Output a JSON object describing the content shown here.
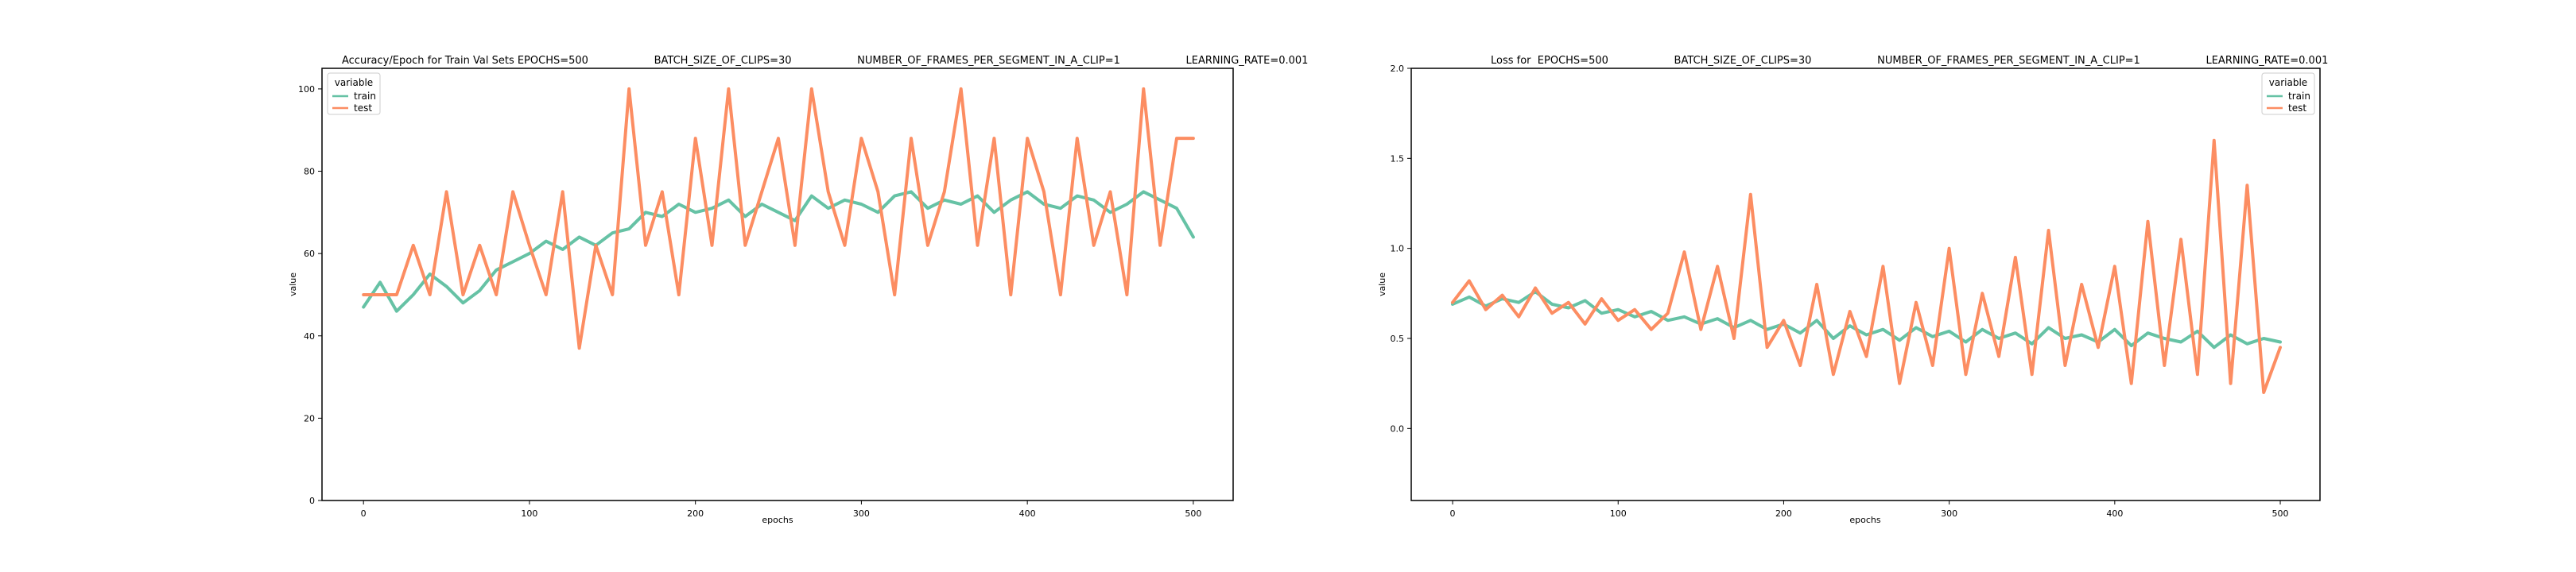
{
  "chart_data": [
    {
      "type": "line",
      "title": "Accuracy/Epoch for Train Val Sets EPOCHS=500                    BATCH_SIZE_OF_CLIPS=30                    NUMBER_OF_FRAMES_PER_SEGMENT_IN_A_CLIP=1                    LEARNING_RATE=0.001",
      "xlabel": "epochs",
      "ylabel": "value",
      "xlim": [
        -25,
        524
      ],
      "ylim": [
        0,
        105
      ],
      "xticks": [
        0,
        100,
        200,
        300,
        400,
        500
      ],
      "yticks": [
        0,
        20,
        40,
        60,
        80,
        100
      ],
      "grid": false,
      "legend": {
        "title": "variable",
        "placement": "upper-left"
      },
      "series": [
        {
          "name": "train",
          "color": "#66c2a5",
          "x": [
            0,
            10,
            20,
            30,
            40,
            50,
            60,
            70,
            80,
            90,
            100,
            110,
            120,
            130,
            140,
            150,
            160,
            170,
            180,
            190,
            200,
            210,
            220,
            230,
            240,
            250,
            260,
            270,
            280,
            290,
            300,
            310,
            320,
            330,
            340,
            350,
            360,
            370,
            380,
            390,
            400,
            410,
            420,
            430,
            440,
            450,
            460,
            470,
            480,
            490,
            500
          ],
          "y": [
            47,
            53,
            46,
            50,
            55,
            52,
            48,
            51,
            56,
            58,
            60,
            63,
            61,
            64,
            62,
            65,
            66,
            70,
            69,
            72,
            70,
            71,
            73,
            69,
            72,
            70,
            68,
            74,
            71,
            73,
            72,
            70,
            74,
            75,
            71,
            73,
            72,
            74,
            70,
            73,
            75,
            72,
            71,
            74,
            73,
            70,
            72,
            75,
            73,
            71,
            64
          ]
        },
        {
          "name": "test",
          "color": "#fc8d62",
          "x": [
            0,
            10,
            20,
            30,
            40,
            50,
            60,
            70,
            80,
            90,
            100,
            110,
            120,
            130,
            140,
            150,
            160,
            170,
            180,
            190,
            200,
            210,
            220,
            230,
            240,
            250,
            260,
            270,
            280,
            290,
            300,
            310,
            320,
            330,
            340,
            350,
            360,
            370,
            380,
            390,
            400,
            410,
            420,
            430,
            440,
            450,
            460,
            470,
            480,
            490,
            500
          ],
          "y": [
            50,
            50,
            50,
            62,
            50,
            75,
            50,
            62,
            50,
            75,
            62,
            50,
            75,
            37,
            62,
            50,
            100,
            62,
            75,
            50,
            88,
            62,
            100,
            62,
            75,
            88,
            62,
            100,
            75,
            62,
            88,
            75,
            50,
            88,
            62,
            75,
            100,
            62,
            88,
            50,
            88,
            75,
            50,
            88,
            62,
            75,
            50,
            100,
            62,
            88,
            88
          ]
        }
      ]
    },
    {
      "type": "line",
      "title": "Loss for  EPOCHS=500                    BATCH_SIZE_OF_CLIPS=30                    NUMBER_OF_FRAMES_PER_SEGMENT_IN_A_CLIP=1                    LEARNING_RATE=0.001",
      "xlabel": "epochs",
      "ylabel": "value",
      "xlim": [
        -25,
        524
      ],
      "ylim": [
        -0.4,
        2.0
      ],
      "xticks": [
        0,
        100,
        200,
        300,
        400,
        500
      ],
      "yticks": [
        0.0,
        0.5,
        1.0,
        1.5,
        2.0
      ],
      "grid": false,
      "legend": {
        "title": "variable",
        "placement": "upper-right"
      },
      "series": [
        {
          "name": "train",
          "color": "#66c2a5",
          "x": [
            0,
            10,
            20,
            30,
            40,
            50,
            60,
            70,
            80,
            90,
            100,
            110,
            120,
            130,
            140,
            150,
            160,
            170,
            180,
            190,
            200,
            210,
            220,
            230,
            240,
            250,
            260,
            270,
            280,
            290,
            300,
            310,
            320,
            330,
            340,
            350,
            360,
            370,
            380,
            390,
            400,
            410,
            420,
            430,
            440,
            450,
            460,
            470,
            480,
            490,
            500
          ],
          "y": [
            0.69,
            0.73,
            0.68,
            0.72,
            0.7,
            0.76,
            0.69,
            0.67,
            0.71,
            0.64,
            0.66,
            0.62,
            0.65,
            0.6,
            0.62,
            0.58,
            0.61,
            0.56,
            0.6,
            0.55,
            0.58,
            0.53,
            0.6,
            0.5,
            0.57,
            0.52,
            0.55,
            0.49,
            0.56,
            0.51,
            0.54,
            0.48,
            0.55,
            0.5,
            0.53,
            0.47,
            0.56,
            0.5,
            0.52,
            0.48,
            0.55,
            0.46,
            0.53,
            0.5,
            0.48,
            0.54,
            0.45,
            0.52,
            0.47,
            0.5,
            0.48
          ]
        },
        {
          "name": "test",
          "color": "#fc8d62",
          "x": [
            0,
            10,
            20,
            30,
            40,
            50,
            60,
            70,
            80,
            90,
            100,
            110,
            120,
            130,
            140,
            150,
            160,
            170,
            180,
            190,
            200,
            210,
            220,
            230,
            240,
            250,
            260,
            270,
            280,
            290,
            300,
            310,
            320,
            330,
            340,
            350,
            360,
            370,
            380,
            390,
            400,
            410,
            420,
            430,
            440,
            450,
            460,
            470,
            480,
            490,
            500
          ],
          "y": [
            0.7,
            0.82,
            0.66,
            0.74,
            0.62,
            0.78,
            0.64,
            0.7,
            0.58,
            0.72,
            0.6,
            0.66,
            0.55,
            0.64,
            0.98,
            0.55,
            0.9,
            0.5,
            1.3,
            0.45,
            0.6,
            0.35,
            0.8,
            0.3,
            0.65,
            0.4,
            0.9,
            0.25,
            0.7,
            0.35,
            1.0,
            0.3,
            0.75,
            0.4,
            0.95,
            0.3,
            1.1,
            0.35,
            0.8,
            0.45,
            0.9,
            0.25,
            1.15,
            0.35,
            1.05,
            0.3,
            1.6,
            0.25,
            1.35,
            0.2,
            0.45
          ]
        }
      ]
    }
  ]
}
